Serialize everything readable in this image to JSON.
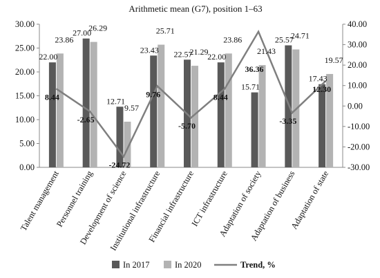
{
  "chart_data": {
    "type": "bar",
    "title": "Arithmetic mean (G7), position 1–63",
    "categories": [
      "Talent management",
      "Personnel training",
      "Development of science",
      "Institutional infrastructure",
      "Financial infrastructure",
      "ICT infrastructure",
      "Adaptation of society",
      "Adaptation of business",
      "Adaptation of state"
    ],
    "series": [
      {
        "name": "In 2017",
        "type": "bar",
        "axis": "left",
        "color": "#595959",
        "values": [
          22.0,
          27.0,
          12.71,
          23.43,
          22.57,
          22.0,
          15.71,
          25.57,
          17.43
        ],
        "labels": [
          "22.00",
          "27.00",
          "12.71",
          "23.43",
          "22.57",
          "22.00",
          "15.71",
          "25.57",
          "17.43"
        ]
      },
      {
        "name": "In 2020",
        "type": "bar",
        "axis": "left",
        "color": "#b3b3b3",
        "values": [
          23.86,
          26.29,
          9.57,
          25.71,
          21.29,
          23.86,
          21.43,
          24.71,
          19.57
        ],
        "labels": [
          "23.86",
          "26.29",
          "9.57",
          "25.71",
          "21.29",
          "23.86",
          "21.43",
          "24.71",
          "19.57"
        ]
      },
      {
        "name": "Trend, %",
        "type": "line",
        "axis": "right",
        "color": "#7f7f7f",
        "values": [
          8.44,
          -2.65,
          -24.72,
          9.76,
          -5.7,
          8.44,
          36.36,
          -3.35,
          12.3
        ],
        "labels": [
          "8.44",
          "-2.65",
          "-24.72",
          "9.76",
          "-5.70",
          "8.44",
          "36.36",
          "-3.35",
          "12.30"
        ]
      }
    ],
    "y_left": {
      "ylim": [
        0,
        30
      ],
      "ticks": [
        "0.00",
        "5.00",
        "10.00",
        "15.00",
        "20.00",
        "25.00",
        "30.00"
      ]
    },
    "y_right": {
      "ylim": [
        -30,
        40
      ],
      "ticks": [
        "-30.00",
        "-20.00",
        "-10.00",
        "0.00",
        "10.00",
        "20.00",
        "30.00",
        "40.00"
      ]
    },
    "grid": false,
    "legend": "bottom"
  }
}
